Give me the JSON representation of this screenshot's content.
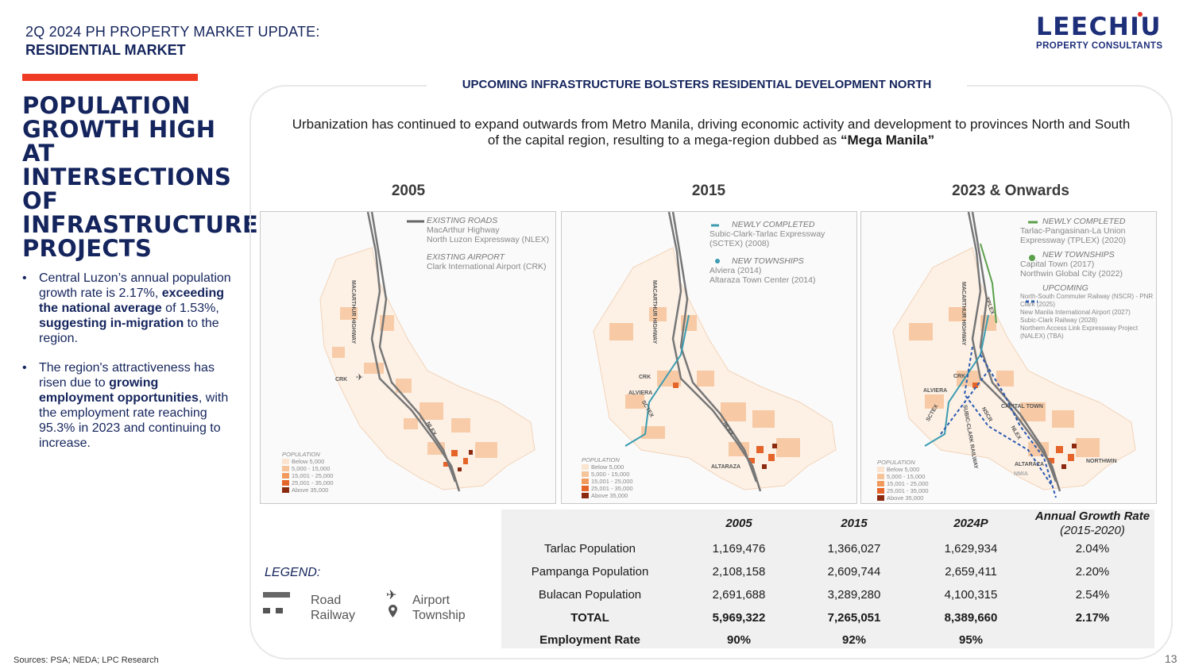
{
  "header": {
    "title": "2Q 2024 PH PROPERTY MARKET UPDATE:",
    "subtitle": "RESIDENTIAL MARKET",
    "logo_main": "LEECHIU",
    "logo_sub": "PROPERTY CONSULTANTS"
  },
  "main_title": "POPULATION GROWTH HIGH AT INTERSECTIONS OF INFRASTRUCTURE PROJECTS",
  "bullets": [
    {
      "p1": "Central Luzon’s annual population growth rate is 2.17%, ",
      "b1": "exceeding the national average",
      "p2": " of 1.53%, ",
      "b2": "suggesting in-migration",
      "p3": " to the region."
    },
    {
      "p1": "The region's attractiveness has risen due to ",
      "b1": "growing employment opportunities",
      "p2": ", with the employment rate reaching 95.3% in 2023 and continuing to increase."
    }
  ],
  "panel": {
    "title": "UPCOMING INFRASTRUCTURE BOLSTERS RESIDENTIAL DEVELOPMENT NORTH",
    "intro_text": "Urbanization has continued to expand outwards from Metro Manila, driving economic activity and development to provinces North and South of the capital region, resulting to a mega-region dubbed as ",
    "intro_bold": "“Mega Manila”"
  },
  "maps": [
    {
      "label": "2005",
      "legend": [
        {
          "title": "EXISTING ROADS",
          "lines": [
            "MacArthur Highway",
            "North Luzon Expressway (NLEX)"
          ]
        },
        {
          "title": "EXISTING AIRPORT",
          "lines": [
            "Clark International Airport (CRK)"
          ]
        }
      ],
      "tags": {
        "crk": "CRK",
        "road1": "MACARTHUR HIGHWAY",
        "road2": "NLEX"
      }
    },
    {
      "label": "2015",
      "legend": [
        {
          "title": "NEWLY COMPLETED",
          "lines": [
            "Subic-Clark-Tarlac Expressway (SCTEX) (2008)"
          ]
        },
        {
          "title": "NEW TOWNSHIPS",
          "lines": [
            "Alviera (2014)",
            "Altaraza Town Center (2014)"
          ]
        }
      ],
      "tags": {
        "crk": "CRK",
        "alviera": "ALVIERA",
        "altaraza": "ALTARAZA",
        "road1": "MACARTHUR HIGHWAY",
        "sctex": "SCTEX",
        "nlex": "NLEX"
      }
    },
    {
      "label": "2023 & Onwards",
      "legend": [
        {
          "title": "NEWLY COMPLETED",
          "lines": [
            "Tarlac-Pangasinan-La Union Expressway (TPLEX) (2020)"
          ]
        },
        {
          "title": "NEW TOWNSHIPS",
          "lines": [
            "Capital Town (2017)",
            "Northwin Global City (2022)"
          ]
        },
        {
          "title": "UPCOMING",
          "lines": [
            "North-South Commuter Railway (NSCR) - PNR Clark (2025)",
            "New Manila International Airport (2027)",
            "Subic-Clark Railway (2028)",
            "Northern Access Link Expressway Project (NALEX) (TBA)"
          ]
        }
      ],
      "tags": {
        "crk": "CRK",
        "alviera": "ALVIERA",
        "capital": "CAPITAL TOWN",
        "altaraza": "ALTARAZA",
        "nmia": "NMIA",
        "northwin": "NORTHWIN",
        "tplex": "TPLEX",
        "road1": "MACARTHUR HIGHWAY",
        "sctex": "SCTEX",
        "nlex": "NLEX",
        "subic": "SUBIC-CLARK RAILWAY",
        "nscr": "NSCR"
      }
    }
  ],
  "population_legend": {
    "title": "POPULATION",
    "items": [
      "Below 5,000",
      "5,000 - 15,000",
      "15,001 - 25,000",
      "25,001 - 35,000",
      "Above 35,000"
    ],
    "colors": [
      "#fbe4d0",
      "#f7c49a",
      "#f29a5c",
      "#e4642a",
      "#8c2a10"
    ]
  },
  "legend": {
    "title": "LEGEND:",
    "road": "Road",
    "railway": "Railway",
    "airport": "Airport",
    "township": "Township"
  },
  "table": {
    "headers": [
      "2005",
      "2015",
      "2024P"
    ],
    "growth_header": "Annual Growth Rate",
    "growth_header_sub": "(2015-2020)",
    "rows": [
      {
        "label": "Tarlac Population",
        "v2005": "1,169,476",
        "v2015": "1,366,027",
        "v2024": "1,629,934",
        "growth": "2.04%",
        "bold": false
      },
      {
        "label": "Pampanga Population",
        "v2005": "2,108,158",
        "v2015": "2,609,744",
        "v2024": "2,659,411",
        "growth": "2.20%",
        "bold": false
      },
      {
        "label": "Bulacan Population",
        "v2005": "2,691,688",
        "v2015": "3,289,280",
        "v2024": "4,100,315",
        "growth": "2.54%",
        "bold": false
      },
      {
        "label": "TOTAL",
        "v2005": "5,969,322",
        "v2015": "7,265,051",
        "v2024": "8,389,660",
        "growth": "2.17%",
        "bold": true
      },
      {
        "label": "Employment Rate",
        "v2005": "90%",
        "v2015": "92%",
        "v2024": "95%",
        "growth": "",
        "bold": true
      }
    ]
  },
  "footer": {
    "sources": "Sources: PSA; NEDA; LPC Research",
    "page": "13"
  }
}
